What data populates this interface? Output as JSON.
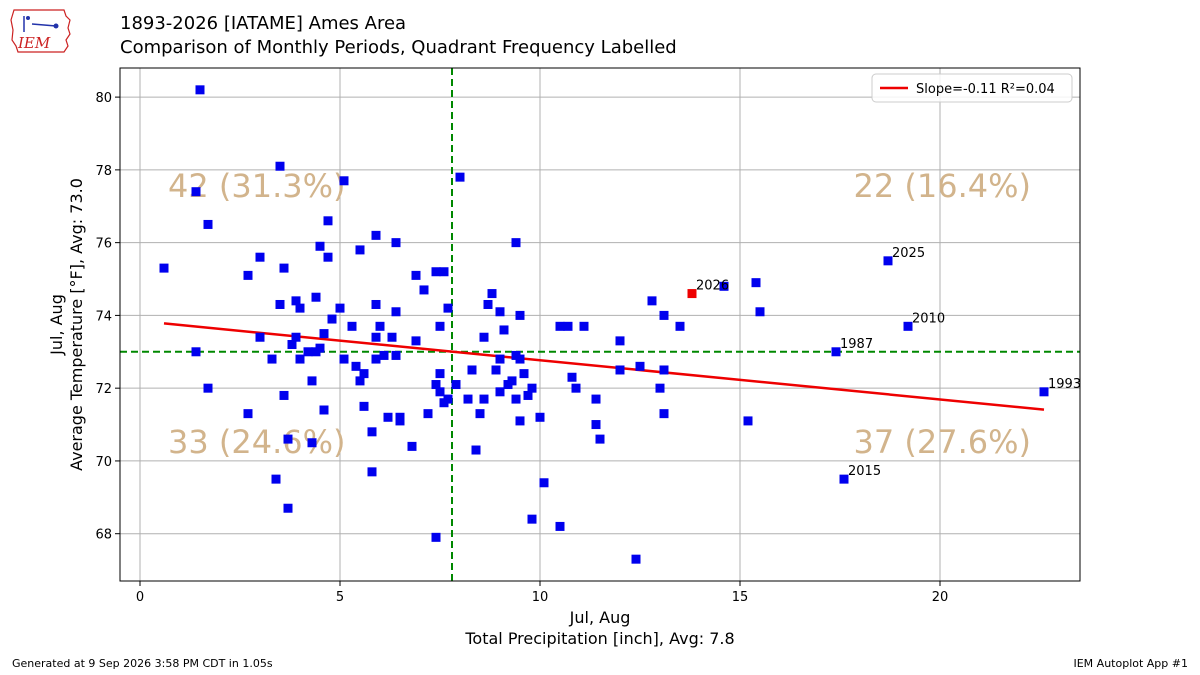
{
  "header": {
    "logo_text": "IEM",
    "title": "1893-2026 [IATAME] Ames Area",
    "subtitle": "Comparison of Monthly Periods, Quadrant Frequency Labelled"
  },
  "footer": {
    "left": "Generated at 9 Sep 2026 3:58 PM CDT in 1.05s",
    "right": "IEM Autoplot App #1"
  },
  "colors": {
    "points": "#0000ee",
    "highlight": "#ee0000",
    "trend": "#ee0000",
    "avg_lines": "#008800",
    "quadrant_text": "#d2b48c",
    "grid": "#b0b0b0"
  },
  "chart_data": {
    "type": "scatter",
    "xlabel_line1": "Jul, Aug",
    "xlabel_line2": "Total Precipitation [inch], Avg: 7.8",
    "ylabel_line1": "Jul, Aug",
    "ylabel_line2": "Average Temperature [°F], Avg: 73.0",
    "xlim": [
      -0.5,
      23.5
    ],
    "ylim": [
      66.7,
      80.8
    ],
    "xticks": [
      0,
      5,
      10,
      15,
      20
    ],
    "yticks": [
      68,
      70,
      72,
      74,
      76,
      78,
      80
    ],
    "grid": true,
    "avg_x": 7.8,
    "avg_y": 73.0,
    "legend": {
      "placement": "top-right",
      "label": "Slope=-0.11 R²=0.04"
    },
    "trend": {
      "x": [
        0.6,
        22.6
      ],
      "y": [
        73.78,
        71.41
      ]
    },
    "quadrants": [
      {
        "label": "42 (31.3%)",
        "position": "top-left"
      },
      {
        "label": "22 (16.4%)",
        "position": "top-right"
      },
      {
        "label": "33 (24.6%)",
        "position": "bottom-left"
      },
      {
        "label": "37 (27.6%)",
        "position": "bottom-right"
      }
    ],
    "labelled_points": [
      {
        "year": "2026",
        "x": 13.8,
        "y": 74.6,
        "highlight": true
      },
      {
        "year": "2025",
        "x": 18.7,
        "y": 75.5
      },
      {
        "year": "2010",
        "x": 19.2,
        "y": 73.7
      },
      {
        "year": "1987",
        "x": 17.4,
        "y": 73.0
      },
      {
        "year": "1993",
        "x": 22.6,
        "y": 71.9
      },
      {
        "year": "2015",
        "x": 17.6,
        "y": 69.5
      }
    ],
    "points": [
      [
        0.6,
        75.3
      ],
      [
        1.4,
        73.0
      ],
      [
        1.4,
        77.4
      ],
      [
        1.5,
        80.2
      ],
      [
        1.7,
        72.0
      ],
      [
        1.7,
        76.5
      ],
      [
        2.7,
        75.1
      ],
      [
        2.7,
        71.3
      ],
      [
        3.0,
        75.6
      ],
      [
        3.0,
        73.4
      ],
      [
        3.3,
        72.8
      ],
      [
        3.4,
        69.5
      ],
      [
        3.5,
        78.1
      ],
      [
        3.5,
        74.3
      ],
      [
        3.6,
        75.3
      ],
      [
        3.6,
        71.8
      ],
      [
        3.7,
        70.6
      ],
      [
        3.7,
        68.7
      ],
      [
        3.8,
        73.2
      ],
      [
        3.9,
        74.4
      ],
      [
        3.9,
        73.4
      ],
      [
        4.0,
        74.2
      ],
      [
        4.0,
        72.8
      ],
      [
        4.2,
        73.0
      ],
      [
        4.3,
        72.2
      ],
      [
        4.3,
        70.5
      ],
      [
        4.4,
        74.5
      ],
      [
        4.4,
        73.0
      ],
      [
        4.5,
        73.1
      ],
      [
        4.5,
        75.9
      ],
      [
        4.6,
        73.5
      ],
      [
        4.6,
        71.4
      ],
      [
        4.7,
        76.6
      ],
      [
        4.7,
        75.6
      ],
      [
        4.8,
        73.9
      ],
      [
        5.0,
        74.2
      ],
      [
        5.1,
        77.7
      ],
      [
        5.1,
        72.8
      ],
      [
        5.3,
        73.7
      ],
      [
        5.4,
        72.6
      ],
      [
        5.5,
        75.8
      ],
      [
        5.5,
        72.2
      ],
      [
        5.6,
        71.5
      ],
      [
        5.6,
        72.4
      ],
      [
        5.8,
        69.7
      ],
      [
        5.8,
        70.8
      ],
      [
        5.9,
        74.3
      ],
      [
        5.9,
        73.4
      ],
      [
        5.9,
        72.8
      ],
      [
        5.9,
        76.2
      ],
      [
        6.0,
        73.7
      ],
      [
        6.1,
        72.9
      ],
      [
        6.2,
        71.2
      ],
      [
        6.3,
        73.4
      ],
      [
        6.4,
        76.0
      ],
      [
        6.4,
        74.1
      ],
      [
        6.4,
        72.9
      ],
      [
        6.5,
        71.2
      ],
      [
        6.5,
        71.1
      ],
      [
        6.8,
        70.4
      ],
      [
        6.9,
        75.1
      ],
      [
        6.9,
        73.3
      ],
      [
        7.1,
        74.7
      ],
      [
        7.2,
        71.3
      ],
      [
        7.4,
        75.2
      ],
      [
        7.4,
        72.1
      ],
      [
        7.4,
        67.9
      ],
      [
        7.5,
        71.9
      ],
      [
        7.5,
        72.4
      ],
      [
        7.5,
        73.7
      ],
      [
        7.6,
        71.6
      ],
      [
        7.6,
        75.2
      ],
      [
        7.7,
        74.2
      ],
      [
        7.7,
        71.7
      ],
      [
        7.9,
        72.1
      ],
      [
        8.0,
        77.8
      ],
      [
        8.2,
        71.7
      ],
      [
        8.3,
        72.5
      ],
      [
        8.4,
        70.3
      ],
      [
        8.5,
        71.3
      ],
      [
        8.6,
        73.4
      ],
      [
        8.6,
        71.7
      ],
      [
        8.7,
        74.3
      ],
      [
        8.8,
        74.6
      ],
      [
        8.9,
        72.5
      ],
      [
        9.0,
        74.1
      ],
      [
        9.0,
        72.8
      ],
      [
        9.0,
        71.9
      ],
      [
        9.1,
        73.6
      ],
      [
        9.2,
        72.1
      ],
      [
        9.3,
        72.2
      ],
      [
        9.4,
        76.0
      ],
      [
        9.4,
        72.9
      ],
      [
        9.4,
        71.7
      ],
      [
        9.5,
        74.0
      ],
      [
        9.5,
        71.1
      ],
      [
        9.5,
        72.8
      ],
      [
        9.6,
        72.4
      ],
      [
        9.7,
        71.8
      ],
      [
        9.8,
        72.0
      ],
      [
        9.8,
        68.4
      ],
      [
        10.0,
        71.2
      ],
      [
        10.1,
        69.4
      ],
      [
        10.5,
        73.7
      ],
      [
        10.5,
        68.2
      ],
      [
        10.7,
        73.7
      ],
      [
        10.8,
        72.3
      ],
      [
        10.9,
        72.0
      ],
      [
        11.1,
        73.7
      ],
      [
        11.4,
        71.0
      ],
      [
        11.4,
        71.7
      ],
      [
        11.5,
        70.6
      ],
      [
        12.0,
        73.3
      ],
      [
        12.0,
        72.5
      ],
      [
        12.4,
        67.3
      ],
      [
        12.5,
        72.6
      ],
      [
        12.8,
        74.4
      ],
      [
        13.0,
        72.0
      ],
      [
        13.1,
        74.0
      ],
      [
        13.1,
        72.5
      ],
      [
        13.1,
        71.3
      ],
      [
        13.5,
        73.7
      ],
      [
        14.6,
        74.8
      ],
      [
        15.2,
        71.1
      ],
      [
        15.4,
        74.9
      ],
      [
        15.5,
        74.1
      ]
    ]
  }
}
